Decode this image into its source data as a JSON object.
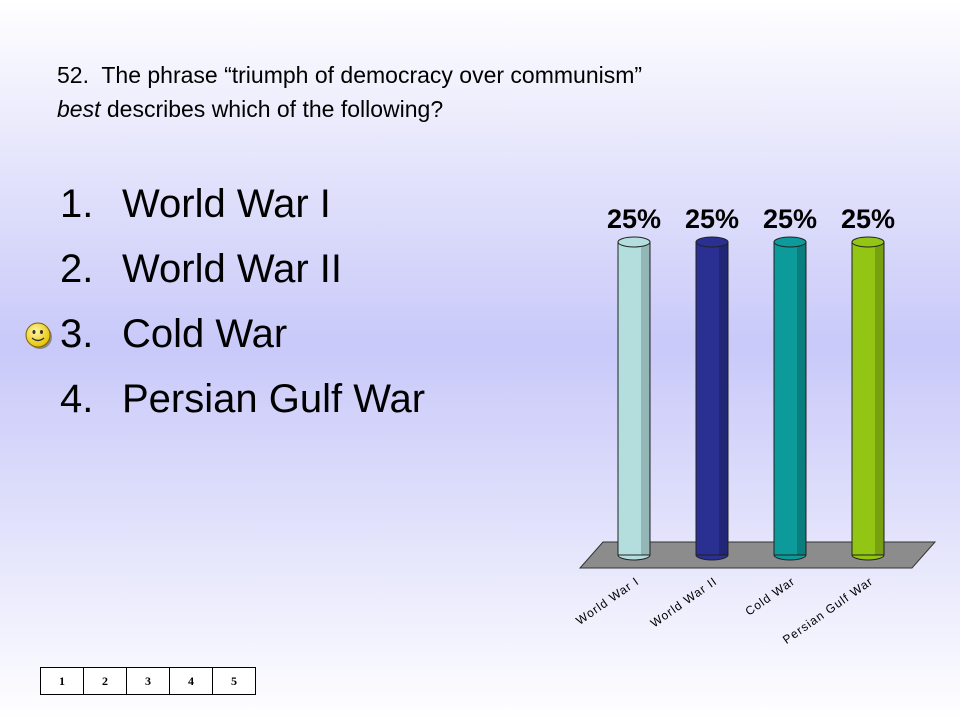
{
  "question": {
    "number": "52.",
    "text_start": "The phrase “triumph of democracy over communism”",
    "emphasis": "best",
    "text_end": "describes which of the following?"
  },
  "answers": [
    {
      "num": "1.",
      "label": "World War I"
    },
    {
      "num": "2.",
      "label": "World War II"
    },
    {
      "num": "3.",
      "label": "Cold War",
      "marked_correct": true
    },
    {
      "num": "4.",
      "label": "Persian Gulf War"
    }
  ],
  "correct_marker_icon": "smiley-face-icon",
  "counter": [
    "1",
    "2",
    "3",
    "4",
    "5"
  ],
  "chart_data": {
    "type": "bar",
    "categories": [
      "World War I",
      "World War II",
      "Cold War",
      "Persian Gulf War"
    ],
    "values": [
      25,
      25,
      25,
      25
    ],
    "data_labels": [
      "25%",
      "25%",
      "25%",
      "25%"
    ],
    "colors": [
      "#b4dede",
      "#2a2f92",
      "#0d9a9a",
      "#93c515"
    ],
    "ylim": [
      0,
      25
    ],
    "xlabel": "",
    "ylabel": "",
    "title": "",
    "grid": false,
    "legend": "none"
  }
}
